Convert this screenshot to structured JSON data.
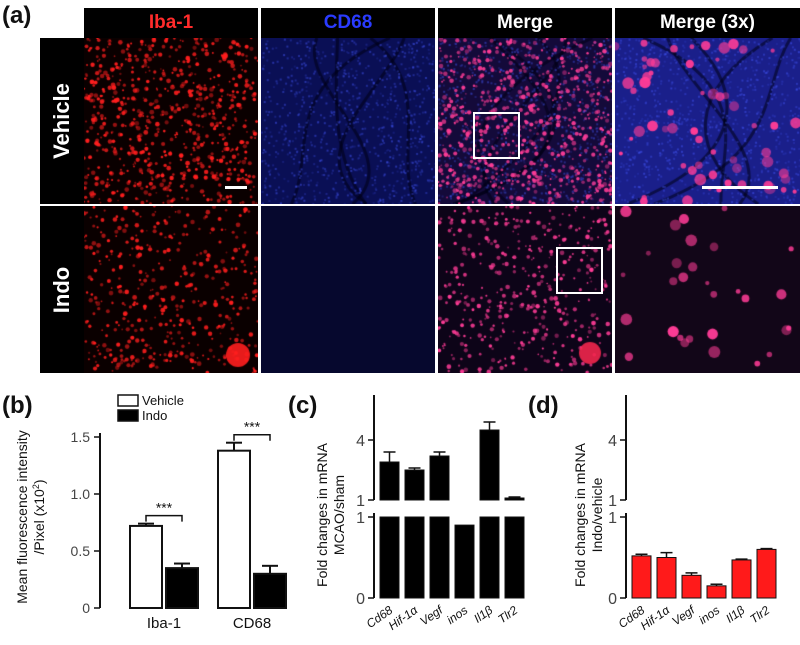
{
  "panels": {
    "a": "(a)",
    "b": "(b)",
    "c": "(c)",
    "d": "(d)"
  },
  "micrograph": {
    "columns": [
      {
        "label": "Iba-1",
        "color": "#ff2b2b"
      },
      {
        "label": "CD68",
        "color": "#2233dd"
      },
      {
        "label": "Merge",
        "color": "#ffffff"
      },
      {
        "label": "Merge (3x)",
        "color": "#ffffff"
      }
    ],
    "rows": [
      "Vehicle",
      "Indo"
    ]
  },
  "chart_data": [
    {
      "panel": "b",
      "type": "bar",
      "categories": [
        "Iba-1",
        "CD68"
      ],
      "series": [
        {
          "name": "Vehicle",
          "values": [
            0.72,
            1.38
          ],
          "errors": [
            0.02,
            0.07
          ],
          "fill": "#ffffff"
        },
        {
          "name": "Indo",
          "values": [
            0.35,
            0.3
          ],
          "errors": [
            0.04,
            0.07
          ],
          "fill": "#000000"
        }
      ],
      "ylabel_line1": "Mean fluorescence intensity",
      "ylabel_line2": "/Pixel (x10",
      "ylabel_sup": "2",
      "ylabel_end": ")",
      "ylim": [
        0,
        1.5
      ],
      "yticks": [
        "0",
        "0.5",
        "1.0",
        "1.5"
      ],
      "significance": [
        "***",
        "***"
      ],
      "legend_position": "top"
    },
    {
      "panel": "c",
      "type": "bar",
      "categories": [
        "Cd68",
        "Hif-1α",
        "Vegf",
        "inos",
        "Il1β",
        "Tlr2"
      ],
      "values": [
        2.9,
        2.5,
        3.2,
        0.9,
        4.5,
        1.1
      ],
      "errors": [
        0.5,
        0.1,
        0.2,
        0.0,
        0.4,
        0.05
      ],
      "ylabel_line1": "Fold changes in mRNA",
      "ylabel_line2": "MCAO/sham",
      "axis_break": true,
      "yticks": [
        "0",
        "1",
        "1",
        "4"
      ],
      "bar_color": "#000000"
    },
    {
      "panel": "d",
      "type": "bar",
      "categories": [
        "Cd68",
        "Hif-1α",
        "Vegf",
        "inos",
        "Il1β",
        "Tlr2"
      ],
      "values": [
        0.52,
        0.5,
        0.28,
        0.15,
        0.47,
        0.6
      ],
      "errors": [
        0.02,
        0.06,
        0.03,
        0.02,
        0.01,
        0.01
      ],
      "ylabel_line1": "Fold changes in mRNA",
      "ylabel_line2": "Indo/vehicle",
      "axis_break": true,
      "yticks": [
        "0",
        "1",
        "1",
        "4"
      ],
      "bar_color": "#ff1a1a"
    }
  ]
}
